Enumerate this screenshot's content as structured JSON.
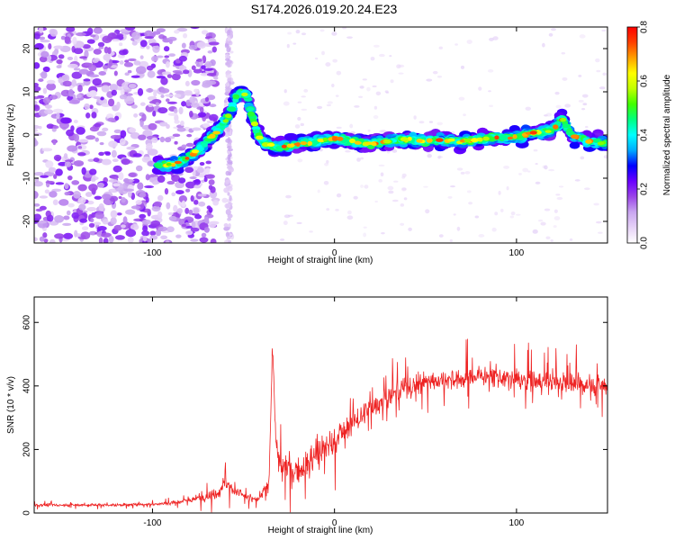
{
  "figure": {
    "title": "S174.2026.019.20.24.E23"
  },
  "chart_data": [
    {
      "type": "heatmap",
      "name": "spectrogram",
      "xlabel": "Height of straight line (km)",
      "ylabel": "Frequency (Hz)",
      "xlim": [
        -165,
        150
      ],
      "ylim": [
        -25,
        25
      ],
      "xticks": [
        -100,
        0,
        100
      ],
      "yticks": [
        -20,
        -10,
        0,
        10,
        20
      ],
      "colorbar": {
        "label": "Normalized spectral amplitude",
        "range": [
          0,
          0.8
        ],
        "ticks": [
          "0.0",
          "0.2",
          "0.4",
          "0.6",
          "0.8"
        ],
        "colormap": [
          "#ffffff",
          "#e6d2f7",
          "#c9a6f0",
          "#9b45e8",
          "#6a00ff",
          "#0000ff",
          "#00aaff",
          "#00ffff",
          "#00ff80",
          "#40ff00",
          "#c0ff00",
          "#ffff00",
          "#ffa000",
          "#ff4000",
          "#ff0000"
        ]
      },
      "ridge": [
        [
          -95,
          -7.0
        ],
        [
          -85,
          -6.5
        ],
        [
          -75,
          -3.5
        ],
        [
          -65,
          0.5
        ],
        [
          -58,
          4.5
        ],
        [
          -52,
          10.5
        ],
        [
          -48,
          9.0
        ],
        [
          -45,
          4.0
        ],
        [
          -42,
          0.0
        ],
        [
          -38,
          -2.0
        ],
        [
          -30,
          -3.0
        ],
        [
          -20,
          -2.0
        ],
        [
          -10,
          -1.5
        ],
        [
          0,
          -0.8
        ],
        [
          10,
          -1.5
        ],
        [
          20,
          -2.0
        ],
        [
          30,
          -1.5
        ],
        [
          40,
          -1.0
        ],
        [
          50,
          -1.5
        ],
        [
          60,
          -1.0
        ],
        [
          70,
          -1.5
        ],
        [
          80,
          -1.0
        ],
        [
          90,
          -0.5
        ],
        [
          100,
          -0.5
        ],
        [
          110,
          0.5
        ],
        [
          120,
          1.0
        ],
        [
          125,
          4.0
        ],
        [
          130,
          0.0
        ],
        [
          140,
          -1.5
        ],
        [
          150,
          -2.0
        ]
      ]
    },
    {
      "type": "line",
      "name": "snr",
      "xlabel": "Height of straight line (km)",
      "ylabel": "SNR (10 * v/v)",
      "xlim": [
        -165,
        150
      ],
      "ylim": [
        0,
        680
      ],
      "xticks": [
        -100,
        0,
        100
      ],
      "yticks": [
        0,
        200,
        400,
        600
      ],
      "color": "#ee2222",
      "envelope": [
        [
          -165,
          25
        ],
        [
          -120,
          25
        ],
        [
          -90,
          30
        ],
        [
          -75,
          45
        ],
        [
          -65,
          60
        ],
        [
          -60,
          95
        ],
        [
          -55,
          70
        ],
        [
          -50,
          55
        ],
        [
          -42,
          40
        ],
        [
          -36,
          100
        ],
        [
          -34,
          520
        ],
        [
          -32,
          200
        ],
        [
          -30,
          150
        ],
        [
          -20,
          130
        ],
        [
          -10,
          180
        ],
        [
          0,
          230
        ],
        [
          10,
          280
        ],
        [
          20,
          330
        ],
        [
          30,
          370
        ],
        [
          40,
          400
        ],
        [
          60,
          420
        ],
        [
          80,
          430
        ],
        [
          100,
          420
        ],
        [
          120,
          410
        ],
        [
          140,
          400
        ],
        [
          150,
          400
        ]
      ],
      "noise": [
        [
          -165,
          10
        ],
        [
          -100,
          10
        ],
        [
          -80,
          18
        ],
        [
          -70,
          35
        ],
        [
          -60,
          45
        ],
        [
          -50,
          30
        ],
        [
          -40,
          20
        ],
        [
          -34,
          40
        ],
        [
          -30,
          90
        ],
        [
          -20,
          100
        ],
        [
          0,
          100
        ],
        [
          20,
          90
        ],
        [
          40,
          70
        ],
        [
          80,
          70
        ],
        [
          150,
          80
        ]
      ],
      "ymin_floor": 0,
      "ymax_cap": 672
    }
  ]
}
